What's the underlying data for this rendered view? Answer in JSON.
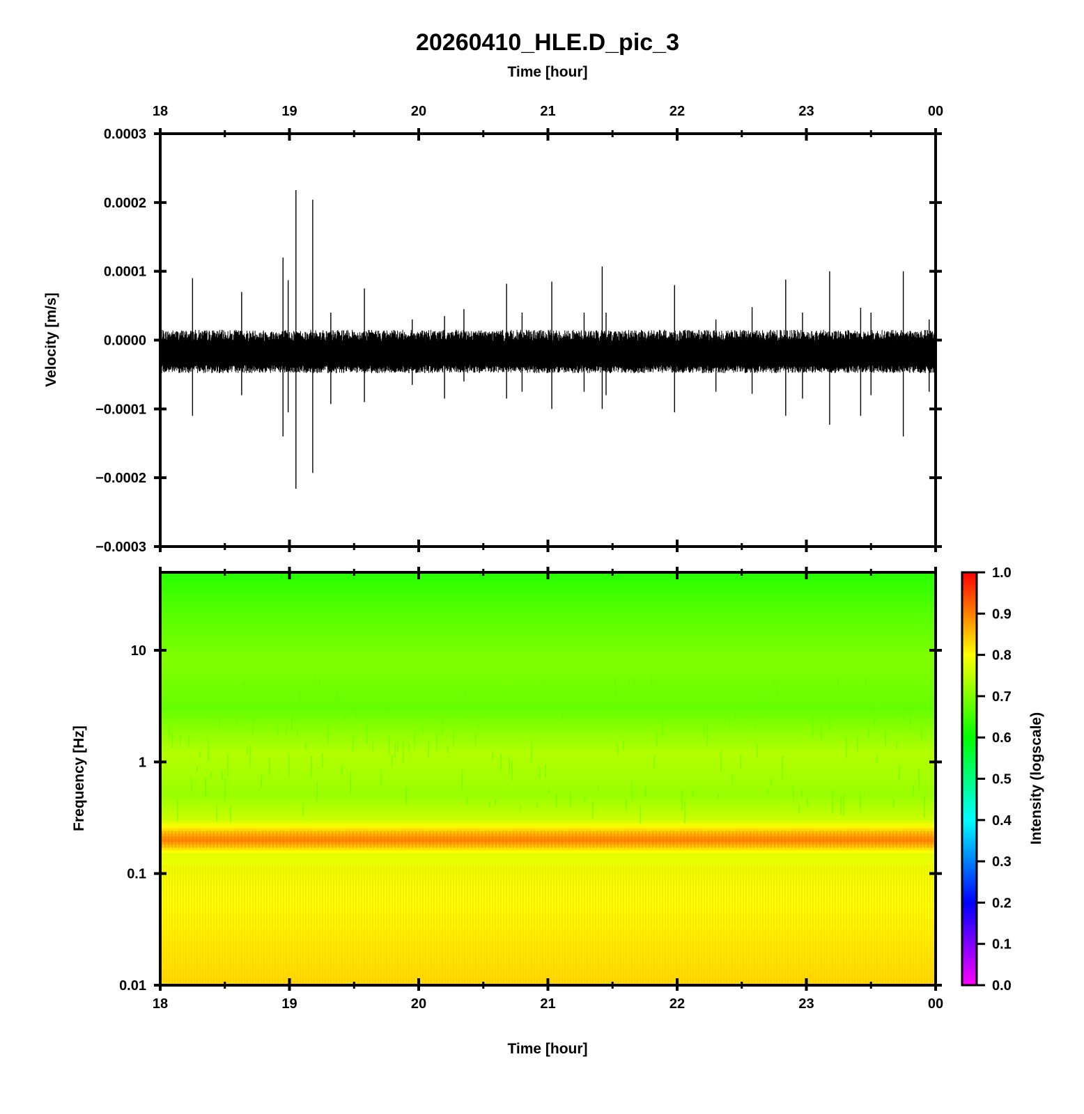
{
  "chart_data": [
    {
      "type": "line",
      "panel": "seismogram",
      "title": "20260410_HLE.D_pic_3",
      "top_xlabel": "Time [hour]",
      "ylabel": "Velocity [m/s]",
      "xlim": [
        18,
        24
      ],
      "ylim": [
        -0.0003,
        0.0003
      ],
      "x_ticks": [
        "18",
        "19",
        "20",
        "21",
        "22",
        "23",
        "00"
      ],
      "y_ticks": [
        {
          "value": 0.0003,
          "label": "0.0003"
        },
        {
          "value": 0.0002,
          "label": "0.0002"
        },
        {
          "value": 0.0001,
          "label": "0.0001"
        },
        {
          "value": 0.0,
          "label": "0.0000"
        },
        {
          "value": -0.0001,
          "label": "−0.0001"
        },
        {
          "value": -0.0002,
          "label": "−0.0002"
        },
        {
          "value": -0.0003,
          "label": "−0.0003"
        }
      ],
      "baseline_offset": -2.2e-05,
      "noise_band": [
        -4.8e-05,
        1.5e-05
      ],
      "spikes": [
        {
          "t": 18.25,
          "max": 9e-05,
          "min": -0.00011
        },
        {
          "t": 18.63,
          "max": 7e-05,
          "min": -8e-05
        },
        {
          "t": 18.95,
          "max": 0.00012,
          "min": -0.00014
        },
        {
          "t": 18.99,
          "max": 8.7e-05,
          "min": -0.000105
        },
        {
          "t": 19.05,
          "max": 0.000218,
          "min": -0.000216
        },
        {
          "t": 19.18,
          "max": 0.000204,
          "min": -0.000193
        },
        {
          "t": 19.32,
          "max": 4e-05,
          "min": -9.3e-05
        },
        {
          "t": 19.58,
          "max": 7.5e-05,
          "min": -9e-05
        },
        {
          "t": 19.95,
          "max": 3e-05,
          "min": -6.5e-05
        },
        {
          "t": 20.2,
          "max": 3.5e-05,
          "min": -8.5e-05
        },
        {
          "t": 20.35,
          "max": 4.5e-05,
          "min": -6e-05
        },
        {
          "t": 20.68,
          "max": 8.2e-05,
          "min": -8.5e-05
        },
        {
          "t": 20.8,
          "max": 4e-05,
          "min": -7.5e-05
        },
        {
          "t": 21.03,
          "max": 8.5e-05,
          "min": -0.0001
        },
        {
          "t": 21.28,
          "max": 4e-05,
          "min": -7.5e-05
        },
        {
          "t": 21.42,
          "max": 0.000107,
          "min": -0.0001
        },
        {
          "t": 21.45,
          "max": 4e-05,
          "min": -8e-05
        },
        {
          "t": 21.98,
          "max": 8e-05,
          "min": -0.000105
        },
        {
          "t": 22.3,
          "max": 3e-05,
          "min": -7.5e-05
        },
        {
          "t": 22.58,
          "max": 4.8e-05,
          "min": -7.8e-05
        },
        {
          "t": 22.84,
          "max": 8.8e-05,
          "min": -0.00011
        },
        {
          "t": 22.97,
          "max": 4e-05,
          "min": -8.5e-05
        },
        {
          "t": 23.18,
          "max": 0.0001,
          "min": -0.000123
        },
        {
          "t": 23.42,
          "max": 4.7e-05,
          "min": -0.00011
        },
        {
          "t": 23.5,
          "max": 4e-05,
          "min": -8e-05
        },
        {
          "t": 23.75,
          "max": 0.0001,
          "min": -0.00014
        },
        {
          "t": 23.95,
          "max": 3e-05,
          "min": -7.5e-05
        }
      ]
    },
    {
      "type": "heatmap",
      "panel": "spectrogram",
      "xlabel": "Time [hour]",
      "ylabel": "Frequency [Hz]",
      "xlim": [
        18,
        24
      ],
      "ylim": [
        0.01,
        50
      ],
      "y_scale": "log",
      "x_ticks": [
        "18",
        "19",
        "20",
        "21",
        "22",
        "23",
        "00"
      ],
      "y_ticks": [
        {
          "value": 10,
          "label": "10"
        },
        {
          "value": 1,
          "label": "1"
        },
        {
          "value": 0.1,
          "label": "0.1"
        },
        {
          "value": 0.01,
          "label": "0.01"
        }
      ],
      "intensity_profile": [
        {
          "freq": 50,
          "intensity": 0.63
        },
        {
          "freq": 20,
          "intensity": 0.67
        },
        {
          "freq": 8,
          "intensity": 0.7
        },
        {
          "freq": 3,
          "intensity": 0.68
        },
        {
          "freq": 1.2,
          "intensity": 0.74
        },
        {
          "freq": 0.5,
          "intensity": 0.72
        },
        {
          "freq": 0.3,
          "intensity": 0.76
        },
        {
          "freq": 0.2,
          "intensity": 0.9
        },
        {
          "freq": 0.15,
          "intensity": 0.78
        },
        {
          "freq": 0.05,
          "intensity": 0.8
        },
        {
          "freq": 0.01,
          "intensity": 0.83
        }
      ],
      "colorbar": {
        "label": "Intensity (logscale)",
        "range": [
          0,
          1
        ],
        "ticks": [
          "1.0",
          "0.9",
          "0.8",
          "0.7",
          "0.6",
          "0.5",
          "0.4",
          "0.3",
          "0.2",
          "0.1",
          "0.0"
        ],
        "colormap": [
          "#ff00ff",
          "#8000ff",
          "#0000ff",
          "#0080ff",
          "#00ffff",
          "#00ff80",
          "#00ff00",
          "#80ff00",
          "#ffff00",
          "#ff8000",
          "#ff0000"
        ]
      }
    }
  ]
}
